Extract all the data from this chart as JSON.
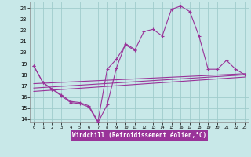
{
  "xlabel": "Windchill (Refroidissement éolien,°C)",
  "x_ticks": [
    0,
    1,
    2,
    3,
    4,
    5,
    6,
    7,
    8,
    9,
    10,
    11,
    12,
    13,
    14,
    15,
    16,
    17,
    18,
    19,
    20,
    21,
    22,
    23
  ],
  "ylim": [
    13.7,
    24.6
  ],
  "xlim": [
    -0.4,
    23.4
  ],
  "yticks": [
    14,
    15,
    16,
    17,
    18,
    19,
    20,
    21,
    22,
    23,
    24
  ],
  "bg_color": "#c8e8e8",
  "grid_color": "#a0cccc",
  "line_color": "#993399",
  "series_full_x": [
    0,
    1,
    2,
    3,
    4,
    5,
    6,
    7,
    8,
    9,
    10,
    11,
    12,
    13,
    14,
    15,
    16,
    17,
    18,
    19,
    20,
    21,
    22,
    23
  ],
  "series_full_y": [
    18.8,
    17.3,
    16.7,
    16.2,
    15.6,
    15.5,
    15.2,
    13.8,
    18.5,
    19.4,
    20.7,
    20.2,
    21.9,
    22.1,
    21.5,
    23.9,
    24.2,
    23.7,
    21.5,
    18.5,
    18.5,
    19.3,
    18.5,
    18.0
  ],
  "series_partial_x": [
    0,
    1,
    2,
    3,
    4,
    5,
    6,
    7,
    8,
    9,
    10,
    11
  ],
  "series_partial_y": [
    18.8,
    17.3,
    16.7,
    16.1,
    15.5,
    15.4,
    15.1,
    13.7,
    15.3,
    18.6,
    20.8,
    20.3
  ],
  "trend1_y": [
    17.2,
    18.1
  ],
  "trend2_y": [
    16.8,
    18.0
  ],
  "trend3_y": [
    16.5,
    17.8
  ]
}
